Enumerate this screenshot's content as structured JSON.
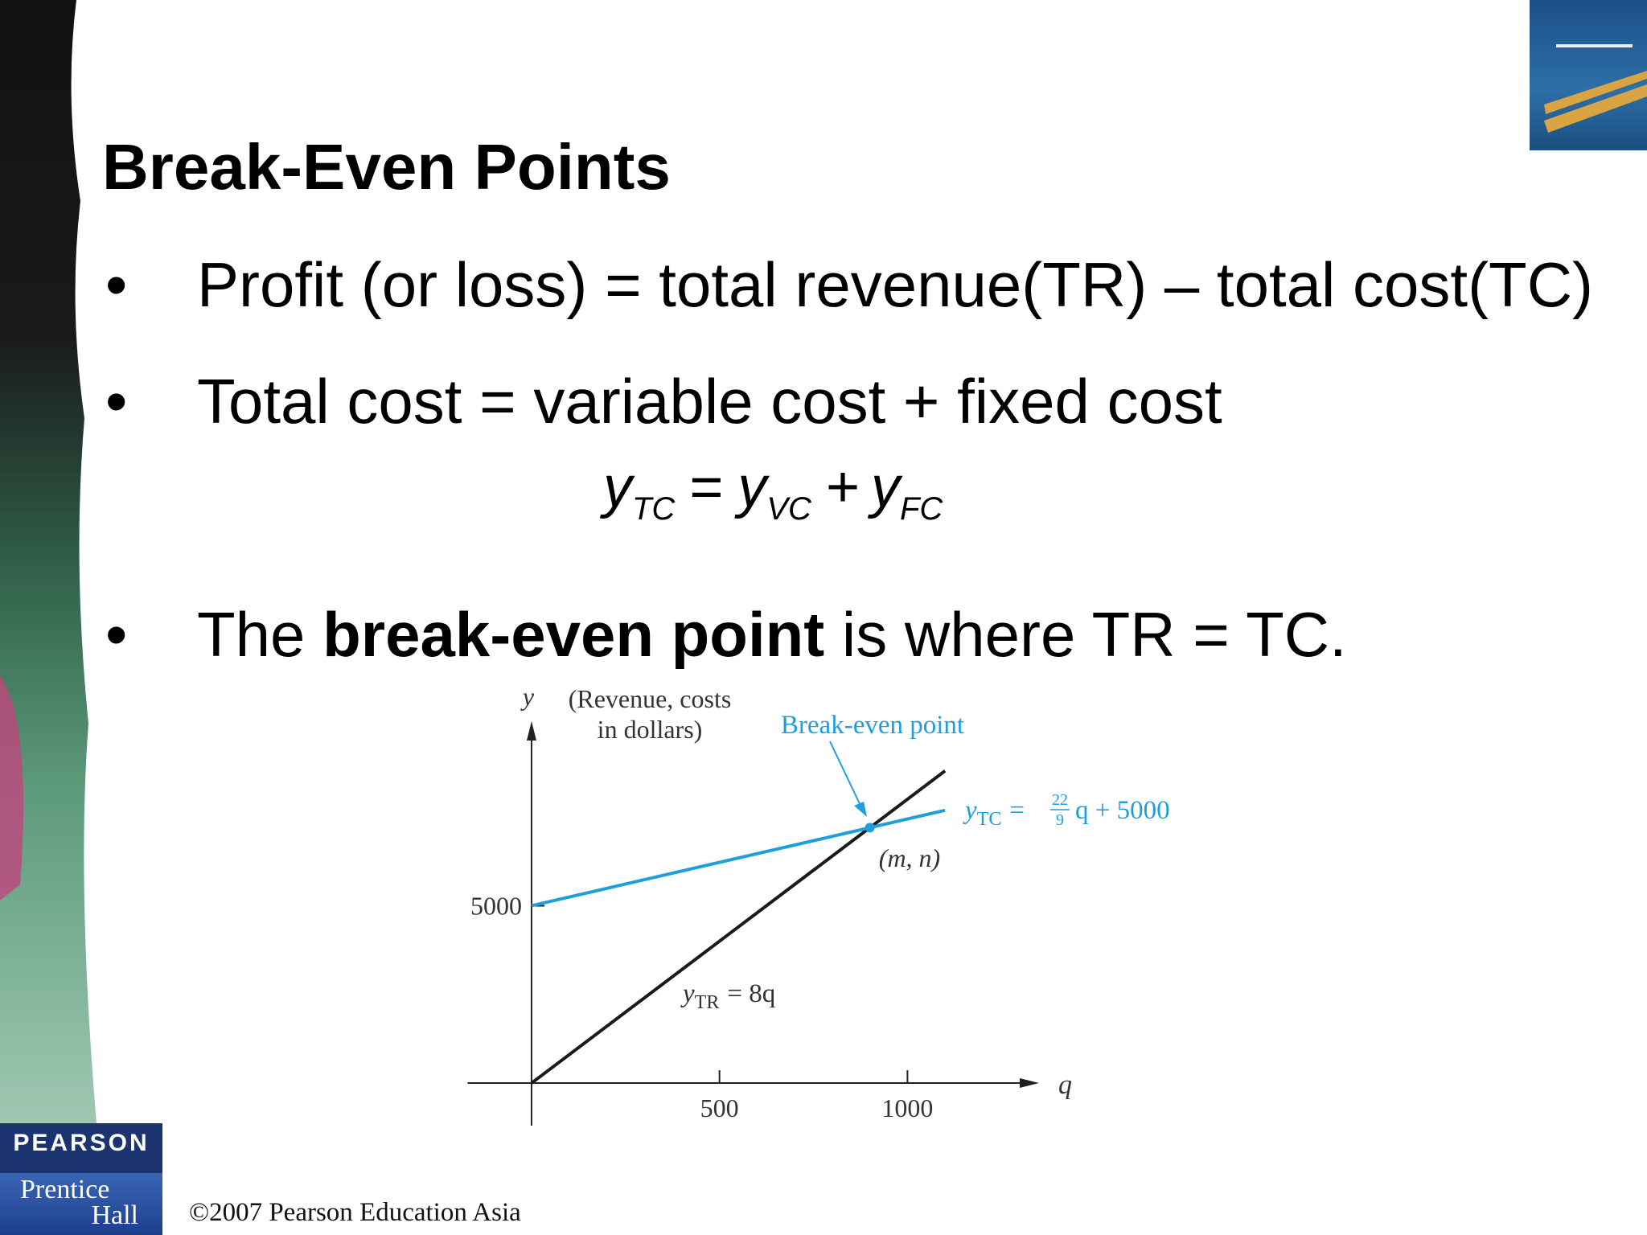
{
  "header": {
    "title": "Break-Even Points"
  },
  "bullet": "•",
  "bullets": [
    {
      "parts": [
        "Profit (or loss) = total revenue(TR) – total cost(TC)"
      ]
    },
    {
      "parts": [
        "Total cost = variable cost + fixed cost"
      ]
    },
    {
      "parts": [
        "The ",
        "break-even point",
        " is where TR = TC."
      ]
    }
  ],
  "equation": [
    "y",
    "TC",
    "=",
    "y",
    "VC",
    "+",
    "y",
    "FC"
  ],
  "chart_data": {
    "type": "line",
    "y_label": "y",
    "y_label_note": [
      "(Revenue, costs",
      "in dollars)"
    ],
    "x_label": "q",
    "xlim": [
      -170,
      1350
    ],
    "ylim": [
      -1200,
      10200
    ],
    "xticks": [
      500,
      1000
    ],
    "yticks": [
      5000
    ],
    "series": [
      {
        "name": "TR",
        "color": "#1a1a1a",
        "x": [
          0,
          1100
        ],
        "values": [
          0,
          8800
        ]
      },
      {
        "name": "TC",
        "color": "#1e9fdc",
        "x": [
          0,
          1100
        ],
        "values": [
          5000,
          7689
        ]
      }
    ],
    "break_even": {
      "x": 900,
      "y": 7200,
      "label": "(m, n)",
      "title": "Break-even point"
    },
    "tc_label": {
      "y": "y",
      "sub": "TC",
      "eq": "=",
      "num": "22",
      "den": "9",
      "rest": "q + 5000"
    },
    "tr_label": {
      "y": "y",
      "sub": "TR",
      "rest": "= 8q"
    }
  },
  "footer": {
    "copyright": "©2007 Pearson Education Asia",
    "logo": [
      "PEARSON",
      "Prentice",
      "Hall"
    ]
  }
}
